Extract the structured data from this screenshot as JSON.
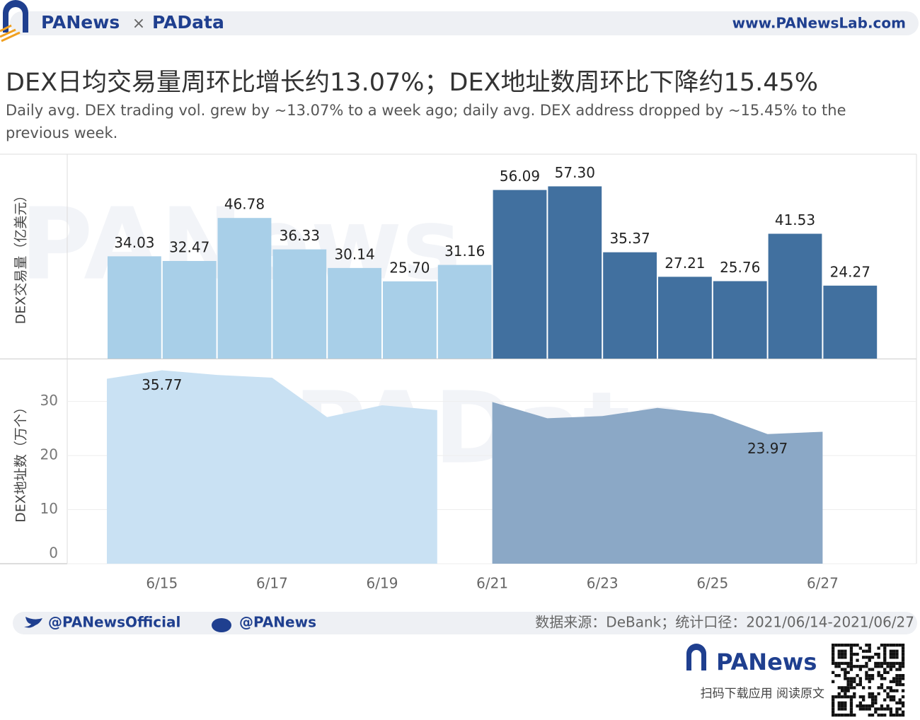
{
  "header": {
    "brand": "PANews",
    "separator": "×",
    "brand2": "PAData",
    "website": "www.PANewsLab.com"
  },
  "title": "DEX日均交易量周环比增长约13.07%；DEX地址数周环比下降约15.45%",
  "subtitle": "Daily avg. DEX trading vol. grew by ~13.07% to a week ago; daily avg. DEX address dropped by ~15.45% to the previous week.",
  "watermarks": [
    "PANews",
    "PAData"
  ],
  "chart_data": [
    {
      "type": "bar",
      "y_label": "DEX交易量（亿美元）",
      "categories": [
        null,
        "6/15",
        null,
        "6/17",
        null,
        "6/19",
        null,
        "6/21",
        null,
        "6/23",
        null,
        "6/25",
        null,
        "6/27"
      ],
      "values": [
        34.03,
        32.47,
        46.78,
        36.33,
        30.14,
        25.7,
        31.16,
        56.09,
        57.3,
        35.37,
        27.21,
        25.76,
        41.53,
        24.27
      ],
      "value_labels": [
        "34.03",
        "32.47",
        "46.78",
        "36.33",
        "30.14",
        "25.70",
        "31.16",
        "56.09",
        "57.30",
        "35.37",
        "27.21",
        "25.76",
        "41.53",
        "24.27"
      ],
      "colors": [
        "#a8cfe8",
        "#a8cfe8",
        "#a8cfe8",
        "#a8cfe8",
        "#a8cfe8",
        "#a8cfe8",
        "#a8cfe8",
        "#41709f",
        "#41709f",
        "#41709f",
        "#41709f",
        "#41709f",
        "#41709f",
        "#41709f"
      ],
      "ylim": [
        0,
        68
      ]
    },
    {
      "type": "area",
      "y_label": "DEX地址数（万个）",
      "categories": [
        null,
        "6/15",
        null,
        "6/17",
        null,
        "6/19",
        null,
        "6/21",
        null,
        "6/23",
        null,
        "6/25",
        null,
        "6/27"
      ],
      "series": [
        {
          "color": "#c9e1f3",
          "values": [
            34.2,
            35.77,
            34.9,
            34.4,
            27.1,
            29.3,
            28.4,
            null,
            null,
            null,
            null,
            null,
            null,
            null
          ],
          "value_labels": [
            null,
            "35.77",
            null,
            null,
            null,
            null,
            null,
            null,
            null,
            null,
            null,
            null,
            null,
            null
          ]
        },
        {
          "color": "#8ba8c6",
          "values": [
            null,
            null,
            null,
            null,
            null,
            null,
            null,
            29.9,
            26.9,
            27.3,
            28.8,
            27.7,
            23.97,
            24.4
          ],
          "value_labels": [
            null,
            null,
            null,
            null,
            null,
            null,
            null,
            null,
            null,
            null,
            null,
            null,
            "23.97",
            null
          ]
        }
      ],
      "ylim": [
        0,
        37.8
      ],
      "yticks": [
        0,
        10,
        20,
        30
      ],
      "grid": true
    }
  ],
  "footer": {
    "twitter": "@PANewsOfficial",
    "weibo": "@PANews",
    "source": "数据来源：DeBank；统计口径：2021/06/14-2021/06/27",
    "logo": "PANews",
    "cta": "扫码下载应用  阅读原文"
  }
}
